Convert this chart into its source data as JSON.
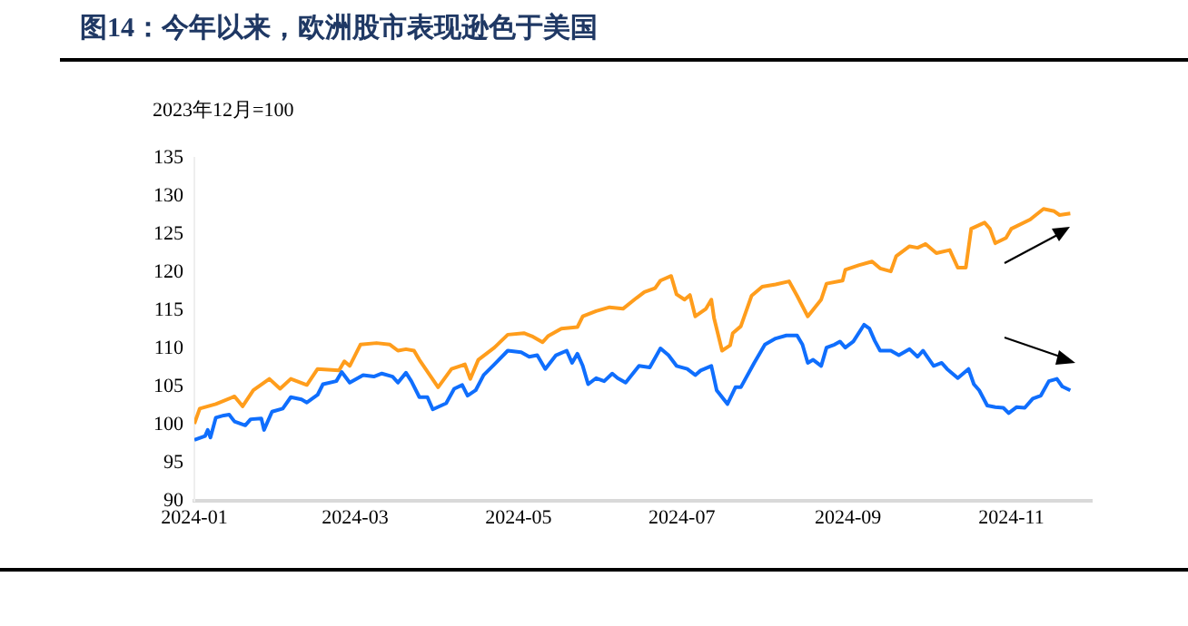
{
  "chart_data": {
    "type": "line",
    "title": "图14：今年以来，欧洲股市表现逊色于美国",
    "annotations": [
      "2023年12月=100"
    ],
    "xlim": [
      "2024-01-01",
      "2024-12-01"
    ],
    "xticks": [
      {
        "value": "2024-01-01",
        "label": "2024-01"
      },
      {
        "value": "2024-03-01",
        "label": "2024-03"
      },
      {
        "value": "2024-05-01",
        "label": "2024-05"
      },
      {
        "value": "2024-07-01",
        "label": "2024-07"
      },
      {
        "value": "2024-09-01",
        "label": "2024-09"
      },
      {
        "value": "2024-11-01",
        "label": "2024-11"
      }
    ],
    "ylim": [
      90,
      135
    ],
    "yticks": [
      90,
      95,
      100,
      105,
      110,
      115,
      120,
      125,
      130,
      135
    ],
    "marker": "none",
    "series": [
      {
        "color": "#0f6efd",
        "x": [
          "2024-01-01",
          "2024-01-05",
          "2024-01-06",
          "2024-01-07",
          "2024-01-09",
          "2024-01-12",
          "2024-01-14",
          "2024-01-16",
          "2024-01-20",
          "2024-01-22",
          "2024-01-26",
          "2024-01-27",
          "2024-01-30",
          "2024-02-03",
          "2024-02-06",
          "2024-02-10",
          "2024-02-12",
          "2024-02-16",
          "2024-02-18",
          "2024-02-23",
          "2024-02-25",
          "2024-02-28",
          "2024-03-04",
          "2024-03-08",
          "2024-03-11",
          "2024-03-15",
          "2024-03-17",
          "2024-03-20",
          "2024-03-22",
          "2024-03-25",
          "2024-03-28",
          "2024-03-30",
          "2024-04-04",
          "2024-04-07",
          "2024-04-10",
          "2024-04-12",
          "2024-04-15",
          "2024-04-18",
          "2024-04-22",
          "2024-04-27",
          "2024-05-02",
          "2024-05-05",
          "2024-05-08",
          "2024-05-11",
          "2024-05-15",
          "2024-05-19",
          "2024-05-21",
          "2024-05-23",
          "2024-05-25",
          "2024-05-27",
          "2024-05-30",
          "2024-06-02",
          "2024-06-05",
          "2024-06-07",
          "2024-06-10",
          "2024-06-15",
          "2024-06-19",
          "2024-06-23",
          "2024-06-26",
          "2024-06-29",
          "2024-07-03",
          "2024-07-06",
          "2024-07-08",
          "2024-07-12",
          "2024-07-14",
          "2024-07-18",
          "2024-07-21",
          "2024-07-23",
          "2024-07-28",
          "2024-08-01",
          "2024-08-05",
          "2024-08-09",
          "2024-08-13",
          "2024-08-15",
          "2024-08-17",
          "2024-08-19",
          "2024-08-22",
          "2024-08-24",
          "2024-08-27",
          "2024-08-29",
          "2024-08-31",
          "2024-09-03",
          "2024-09-07",
          "2024-09-09",
          "2024-09-11",
          "2024-09-13",
          "2024-09-17",
          "2024-09-20",
          "2024-09-24",
          "2024-09-27",
          "2024-09-29",
          "2024-10-03",
          "2024-10-06",
          "2024-10-08",
          "2024-10-12",
          "2024-10-16",
          "2024-10-18",
          "2024-10-20",
          "2024-10-23",
          "2024-10-26",
          "2024-10-29",
          "2024-10-31",
          "2024-11-03",
          "2024-11-06",
          "2024-11-09",
          "2024-11-12",
          "2024-11-15",
          "2024-11-18",
          "2024-11-20",
          "2024-11-23"
        ],
        "values": [
          98.0,
          98.5,
          99.3,
          98.3,
          100.9,
          101.2,
          101.3,
          100.4,
          99.9,
          100.7,
          100.8,
          99.3,
          101.7,
          102.1,
          103.6,
          103.3,
          102.9,
          103.9,
          105.3,
          105.7,
          106.9,
          105.5,
          106.5,
          106.3,
          106.7,
          106.3,
          105.5,
          106.8,
          105.7,
          103.6,
          103.6,
          102.0,
          102.8,
          104.7,
          105.2,
          103.8,
          104.5,
          106.5,
          107.9,
          109.7,
          109.5,
          108.9,
          109.1,
          107.3,
          109.1,
          109.7,
          108.1,
          109.3,
          107.7,
          105.3,
          106.1,
          105.7,
          106.7,
          106.1,
          105.5,
          107.7,
          107.5,
          110.0,
          109.1,
          107.7,
          107.3,
          106.5,
          107.1,
          107.7,
          104.5,
          102.7,
          104.9,
          104.9,
          108.1,
          110.5,
          111.3,
          111.7,
          111.7,
          110.5,
          108.1,
          108.5,
          107.7,
          110.1,
          110.5,
          110.9,
          110.1,
          110.9,
          113.1,
          112.6,
          111.0,
          109.7,
          109.7,
          109.1,
          109.9,
          108.9,
          109.7,
          107.7,
          108.1,
          107.3,
          106.1,
          107.3,
          105.3,
          104.5,
          102.5,
          102.3,
          102.2,
          101.5,
          102.3,
          102.2,
          103.4,
          103.8,
          105.7,
          106.0,
          105.0,
          104.5
        ]
      },
      {
        "color": "#ff9d1c",
        "x": [
          "2024-01-01",
          "2024-01-03",
          "2024-01-09",
          "2024-01-16",
          "2024-01-19",
          "2024-01-23",
          "2024-01-29",
          "2024-02-02",
          "2024-02-06",
          "2024-02-12",
          "2024-02-16",
          "2024-02-24",
          "2024-02-26",
          "2024-02-28",
          "2024-03-03",
          "2024-03-09",
          "2024-03-14",
          "2024-03-17",
          "2024-03-20",
          "2024-03-23",
          "2024-03-25",
          "2024-04-01",
          "2024-04-06",
          "2024-04-11",
          "2024-04-13",
          "2024-04-16",
          "2024-04-22",
          "2024-04-27",
          "2024-05-03",
          "2024-05-06",
          "2024-05-10",
          "2024-05-12",
          "2024-05-17",
          "2024-05-23",
          "2024-05-25",
          "2024-05-30",
          "2024-06-04",
          "2024-06-09",
          "2024-06-14",
          "2024-06-17",
          "2024-06-21",
          "2024-06-23",
          "2024-06-27",
          "2024-06-29",
          "2024-07-02",
          "2024-07-04",
          "2024-07-06",
          "2024-07-10",
          "2024-07-12",
          "2024-07-13",
          "2024-07-16",
          "2024-07-19",
          "2024-07-20",
          "2024-07-23",
          "2024-07-27",
          "2024-07-31",
          "2024-08-05",
          "2024-08-10",
          "2024-08-13",
          "2024-08-17",
          "2024-08-22",
          "2024-08-24",
          "2024-08-30",
          "2024-08-31",
          "2024-09-05",
          "2024-09-10",
          "2024-09-13",
          "2024-09-17",
          "2024-09-19",
          "2024-09-24",
          "2024-09-27",
          "2024-09-30",
          "2024-10-04",
          "2024-10-09",
          "2024-10-12",
          "2024-10-15",
          "2024-10-17",
          "2024-10-22",
          "2024-10-24",
          "2024-10-26",
          "2024-10-30",
          "2024-11-01",
          "2024-11-08",
          "2024-11-13",
          "2024-11-17",
          "2024-11-19",
          "2024-11-23"
        ],
        "values": [
          100.1,
          102.1,
          102.7,
          103.7,
          102.4,
          104.5,
          106.0,
          104.7,
          106.0,
          105.2,
          107.3,
          107.1,
          108.3,
          107.7,
          110.5,
          110.7,
          110.5,
          109.7,
          109.9,
          109.7,
          108.5,
          104.9,
          107.3,
          107.9,
          106.0,
          108.5,
          110.1,
          111.8,
          112.0,
          111.6,
          110.8,
          111.6,
          112.6,
          112.8,
          114.2,
          114.9,
          115.4,
          115.2,
          116.6,
          117.4,
          117.9,
          118.9,
          119.5,
          117.1,
          116.4,
          117.0,
          114.2,
          115.2,
          116.4,
          114.0,
          109.7,
          110.4,
          112.0,
          112.9,
          116.9,
          118.1,
          118.4,
          118.8,
          116.9,
          114.2,
          116.4,
          118.5,
          118.9,
          120.3,
          120.9,
          121.4,
          120.5,
          120.1,
          122.1,
          123.4,
          123.2,
          123.7,
          122.5,
          122.9,
          120.6,
          120.6,
          125.7,
          126.5,
          125.7,
          123.8,
          124.5,
          125.7,
          126.9,
          128.3,
          128.0,
          127.5,
          127.7
        ]
      }
    ]
  }
}
